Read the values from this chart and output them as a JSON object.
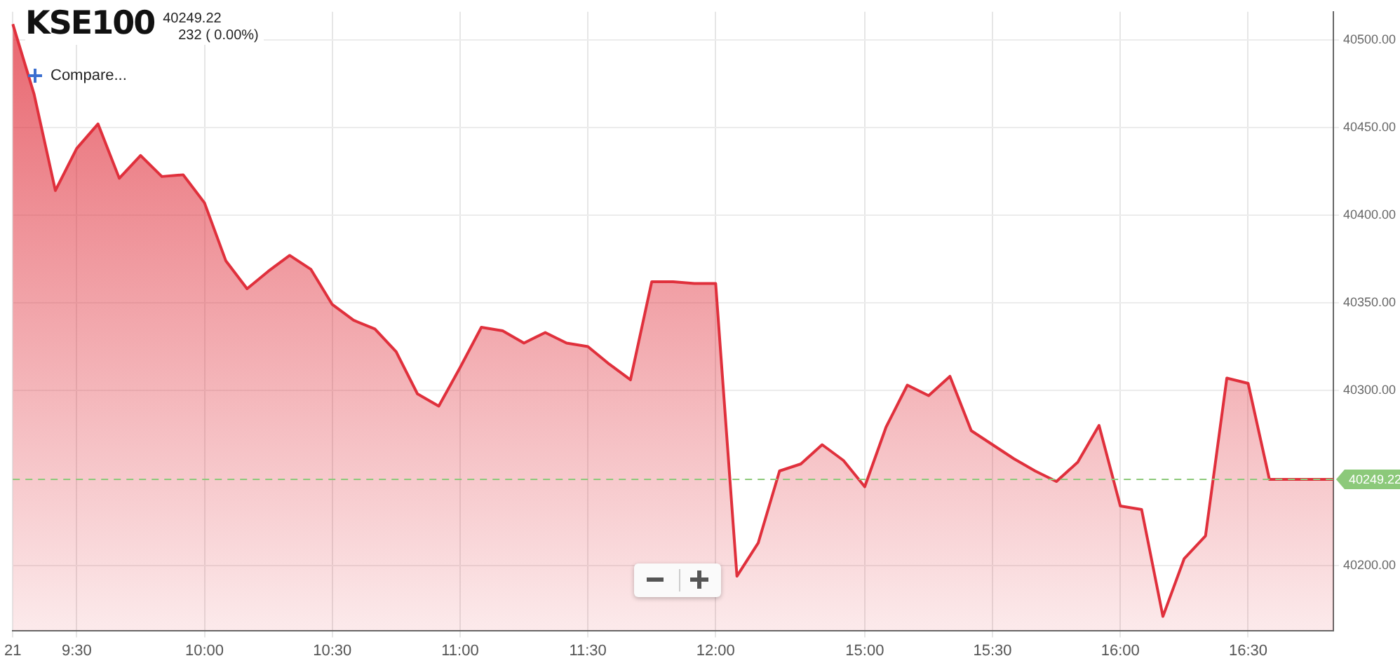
{
  "chart_data": {
    "type": "area",
    "title": "KSE100",
    "subtitle": "40249.22",
    "annotations": [
      "232 ( 0.00%)",
      "Compare..."
    ],
    "categories": [
      "21",
      null,
      null,
      "9:30",
      null,
      null,
      null,
      null,
      null,
      "10:00",
      null,
      null,
      null,
      null,
      null,
      "10:30",
      null,
      null,
      null,
      null,
      null,
      "11:00",
      null,
      null,
      null,
      null,
      null,
      "11:30",
      null,
      null,
      null,
      null,
      null,
      "12:00",
      null,
      null,
      null,
      null,
      null,
      null,
      "15:00",
      null,
      null,
      null,
      null,
      null,
      "15:30",
      null,
      null,
      null,
      null,
      null,
      "16:00",
      null,
      null,
      null,
      null,
      null,
      "16:30",
      null,
      null,
      null,
      null
    ],
    "series": [
      {
        "color": "#e0303c",
        "values": [
          40509,
          40469,
          40414,
          40438,
          40452,
          40421,
          40434,
          40422,
          40423,
          40407,
          40374,
          40358,
          40368,
          40377,
          40369,
          40349,
          40340,
          40335,
          40322,
          40298,
          40291,
          40313,
          40336,
          40334,
          40327,
          40333,
          40327,
          40325,
          40315,
          40306,
          40362,
          40362,
          40361,
          40361,
          40194,
          40213,
          40254,
          40258,
          40269,
          40260,
          40245,
          40279,
          40303,
          40297,
          40308,
          40277,
          40269,
          40261,
          40254,
          40248,
          40259,
          40280,
          40234,
          40232,
          40171,
          40204,
          40217,
          40307,
          40304,
          40249.22,
          40249.22,
          40249.22,
          40249.22
        ]
      }
    ],
    "ylim": [
      40163,
      40516
    ],
    "yticks": [
      {
        "value": 40200,
        "label": "40200.00"
      },
      {
        "value": 40250,
        "label": null
      },
      {
        "value": 40300,
        "label": "40300.00"
      },
      {
        "value": 40350,
        "label": "40350.00"
      },
      {
        "value": 40400,
        "label": "40400.00"
      },
      {
        "value": 40450,
        "label": "40450.00"
      },
      {
        "value": 40500,
        "label": "40500.00"
      }
    ],
    "ref_lines": [
      {
        "axis": "y",
        "value": 40249.22,
        "label": "40249.22",
        "color": "#8cc97a",
        "line_style": "dashed"
      }
    ],
    "grid": true,
    "legend": false,
    "marker": "none",
    "line_style": "solid"
  }
}
